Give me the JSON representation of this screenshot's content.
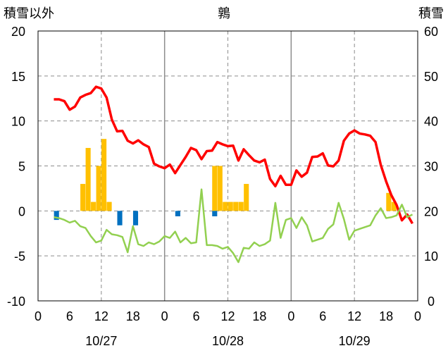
{
  "chart_data": {
    "type": "bar+line",
    "title": "鶉",
    "left_axis": {
      "label": "積雪以外",
      "ylim": [
        -10,
        20
      ],
      "ticks": [
        "-10",
        "-5",
        "0",
        "5",
        "10",
        "15",
        "20"
      ]
    },
    "right_axis": {
      "label": "積雪",
      "ylim": [
        0,
        60
      ],
      "ticks": [
        "0",
        "10",
        "20",
        "30",
        "40",
        "50",
        "60"
      ]
    },
    "x_axis": {
      "unit": "hour",
      "range": [
        0,
        72
      ],
      "tick_labels": [
        "0",
        "6",
        "12",
        "18",
        "0",
        "6",
        "12",
        "18",
        "0",
        "6",
        "12",
        "18",
        "0"
      ],
      "date_labels": [
        "10/27",
        "10/28",
        "10/29"
      ]
    },
    "grid": "dashed vertical at 12h, solid vertical at day boundaries, dashed horizontal at every 5",
    "series": [
      {
        "kind": "bar",
        "axis": "left",
        "color": "#FFC000",
        "points": [
          [
            9,
            3
          ],
          [
            10,
            7
          ],
          [
            11,
            1
          ],
          [
            12,
            5
          ],
          [
            13,
            8
          ],
          [
            14,
            1
          ],
          [
            34,
            5
          ],
          [
            35,
            5
          ],
          [
            36,
            1
          ],
          [
            37,
            1
          ],
          [
            38,
            1
          ],
          [
            39,
            1
          ],
          [
            40,
            3
          ],
          [
            67,
            2
          ],
          [
            68,
            1
          ]
        ]
      },
      {
        "kind": "bar",
        "axis": "left",
        "color": "#0070C0",
        "points": [
          [
            4,
            -1
          ],
          [
            16,
            -1.6
          ],
          [
            19,
            -1.6
          ],
          [
            27,
            -0.6
          ],
          [
            34,
            -0.6
          ]
        ]
      },
      {
        "kind": "line",
        "axis": "right",
        "color": "#FF0000",
        "points": [
          [
            3,
            44.8
          ],
          [
            4,
            44.8
          ],
          [
            5,
            44.4
          ],
          [
            6,
            42.5
          ],
          [
            7,
            43.2
          ],
          [
            8,
            45.2
          ],
          [
            9,
            45.8
          ],
          [
            10,
            46.2
          ],
          [
            11,
            47.6
          ],
          [
            12,
            47.2
          ],
          [
            13,
            45.2
          ],
          [
            14,
            40.3
          ],
          [
            15,
            37.7
          ],
          [
            16,
            37.8
          ],
          [
            17,
            35.6
          ],
          [
            18,
            35
          ],
          [
            19,
            35.7
          ],
          [
            20,
            34.8
          ],
          [
            21,
            34.2
          ],
          [
            22,
            30.5
          ],
          [
            23,
            29.9
          ],
          [
            24,
            29.5
          ],
          [
            25,
            30.3
          ],
          [
            26,
            28.4
          ],
          [
            27,
            30.2
          ],
          [
            28,
            32
          ],
          [
            29,
            34
          ],
          [
            30,
            33.5
          ],
          [
            31,
            31.5
          ],
          [
            32,
            33.3
          ],
          [
            33,
            33.4
          ],
          [
            34,
            35.3
          ],
          [
            35,
            34.8
          ],
          [
            36,
            34.4
          ],
          [
            37,
            34.5
          ],
          [
            38,
            31.2
          ],
          [
            39,
            33.7
          ],
          [
            40,
            32.4
          ],
          [
            41,
            31.2
          ],
          [
            42,
            30.8
          ],
          [
            43,
            31.4
          ],
          [
            44,
            27.1
          ],
          [
            45,
            25.5
          ],
          [
            46,
            27.8
          ],
          [
            47,
            25.8
          ],
          [
            48,
            25.8
          ],
          [
            49,
            29
          ],
          [
            50,
            27.6
          ],
          [
            51,
            28.5
          ],
          [
            52,
            32
          ],
          [
            53,
            32.1
          ],
          [
            54,
            32.8
          ],
          [
            55,
            30.1
          ],
          [
            56,
            29.9
          ],
          [
            57,
            31.2
          ],
          [
            58,
            35.6
          ],
          [
            59,
            37.2
          ],
          [
            60,
            37.9
          ],
          [
            61,
            37.2
          ],
          [
            62,
            37
          ],
          [
            63,
            36.7
          ],
          [
            64,
            35.3
          ],
          [
            65,
            30.2
          ],
          [
            66,
            26.6
          ],
          [
            67,
            23.5
          ],
          [
            68,
            21.3
          ],
          [
            69,
            17.9
          ],
          [
            70,
            19.2
          ],
          [
            71,
            17.2
          ]
        ]
      },
      {
        "kind": "line",
        "axis": "left",
        "color": "#92D050",
        "points": [
          [
            3,
            -0.7
          ],
          [
            4,
            -0.8
          ],
          [
            5,
            -1
          ],
          [
            6,
            -1.3
          ],
          [
            7,
            -1.1
          ],
          [
            8,
            -1.7
          ],
          [
            9,
            -1.9
          ],
          [
            10,
            -2.8
          ],
          [
            11,
            -3.5
          ],
          [
            12,
            -3.3
          ],
          [
            13,
            -2.1
          ],
          [
            14,
            -2.6
          ],
          [
            15,
            -2.7
          ],
          [
            16,
            -2.9
          ],
          [
            17,
            -4.6
          ],
          [
            18,
            -1.7
          ],
          [
            19,
            -3.7
          ],
          [
            20,
            -3.9
          ],
          [
            21,
            -3.5
          ],
          [
            22,
            -3.7
          ],
          [
            23,
            -3.4
          ],
          [
            24,
            -2.8
          ],
          [
            25,
            -3
          ],
          [
            26,
            -2.3
          ],
          [
            27,
            -3.5
          ],
          [
            28,
            -3
          ],
          [
            29,
            -3.6
          ],
          [
            30,
            -3.5
          ],
          [
            31,
            2.4
          ],
          [
            32,
            -3.8
          ],
          [
            33,
            -3.8
          ],
          [
            34,
            -3.9
          ],
          [
            35,
            -4.2
          ],
          [
            36,
            -4
          ],
          [
            37,
            -4.7
          ],
          [
            38,
            -5.7
          ],
          [
            39,
            -4.1
          ],
          [
            40,
            -4.2
          ],
          [
            41,
            -3.5
          ],
          [
            42,
            -3.9
          ],
          [
            43,
            -3.7
          ],
          [
            44,
            -3.3
          ],
          [
            45,
            0.9
          ],
          [
            46,
            -3
          ],
          [
            47,
            -1
          ],
          [
            48,
            -0.8
          ],
          [
            49,
            -1.9
          ],
          [
            50,
            -0.7
          ],
          [
            51,
            -1.6
          ],
          [
            52,
            -3.4
          ],
          [
            53,
            -3.2
          ],
          [
            54,
            -3
          ],
          [
            55,
            -2
          ],
          [
            56,
            -1.5
          ],
          [
            57,
            0.9
          ],
          [
            58,
            -0.9
          ],
          [
            59,
            -3.2
          ],
          [
            60,
            -2.2
          ],
          [
            61,
            -2
          ],
          [
            62,
            -1.8
          ],
          [
            63,
            -1.6
          ],
          [
            64,
            -0.5
          ],
          [
            65,
            0.3
          ],
          [
            66,
            -0.8
          ],
          [
            67,
            -0.7
          ],
          [
            68,
            -0.5
          ],
          [
            69,
            0.7
          ],
          [
            70,
            -0.7
          ],
          [
            71,
            -0.4
          ]
        ]
      }
    ]
  }
}
